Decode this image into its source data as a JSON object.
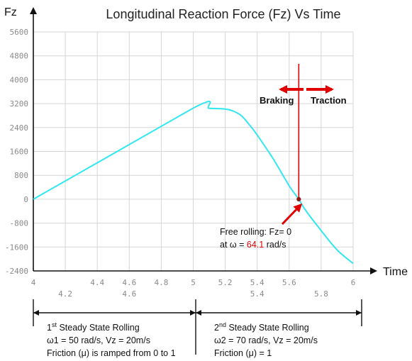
{
  "chart_data": {
    "type": "line",
    "title": "Longitudinal Reaction Force (Fz) Vs Time",
    "ylabel": "Fz",
    "xlabel": "Time",
    "xlim": [
      4,
      6
    ],
    "ylim": [
      -2400,
      5600
    ],
    "y_ticks": [
      "5600",
      "4800",
      "4000",
      "3200",
      "2400",
      "1600",
      "800",
      "0",
      "-800",
      "-1600",
      "-2400"
    ],
    "y_tick_values": [
      5600,
      4800,
      4000,
      3200,
      2400,
      1600,
      800,
      0,
      -800,
      -1600,
      -2400
    ],
    "x_ticks_upper": [
      "4",
      "4.4",
      "4.6",
      "4.8",
      "5",
      "5.2",
      "5.4",
      "5.6",
      "6"
    ],
    "x_ticks_upper_values": [
      4,
      4.4,
      4.6,
      4.8,
      5,
      5.2,
      5.4,
      5.6,
      6
    ],
    "x_ticks_lower": [
      "4.2",
      "4.6",
      "5.4",
      "5.8"
    ],
    "x_ticks_lower_values": [
      4.2,
      4.6,
      5.4,
      5.8
    ],
    "grid": true,
    "series": [
      {
        "color": "#33e6f0",
        "x": [
          4.0,
          5.0,
          5.1,
          5.2,
          5.25,
          5.3,
          5.35,
          5.4,
          5.5,
          5.6,
          5.66,
          5.7,
          5.8,
          5.9,
          6.0
        ],
        "y": [
          0,
          3050,
          3040,
          3020,
          2950,
          2800,
          2500,
          2150,
          1350,
          450,
          0,
          -350,
          -1050,
          -1700,
          -2150
        ]
      }
    ],
    "marker": {
      "x": 5.66,
      "y": 0
    }
  },
  "annotations": {
    "braking": "Braking",
    "traction": "Traction",
    "free_rolling_line1": "Free rolling: Fz= 0",
    "free_rolling_line2_prefix": "at ω = ",
    "free_rolling_value": "64.1",
    "free_rolling_line2_suffix": " rad/s",
    "phase1": {
      "title_num": "1",
      "title_sup": "st",
      "title_rest": " Steady State Rolling",
      "line2": "ω1 = 50 rad/s, Vz = 20m/s",
      "line3": "Friction (μ) is ramped from 0 to 1"
    },
    "phase2": {
      "title_num": "2",
      "title_sup": "nd",
      "title_rest": " Steady State Rolling",
      "line2": "ω2 = 70 rad/s, Vz = 20m/s",
      "line3": "Friction (μ) = 1"
    }
  },
  "colors": {
    "curve": "#33e6f0",
    "red": "#e00000",
    "grid": "#d6d6d6",
    "axis": "#111111"
  }
}
